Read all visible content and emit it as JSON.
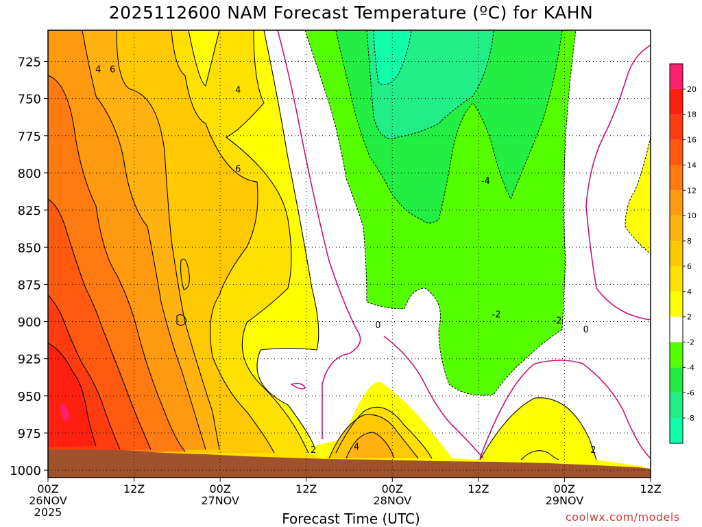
{
  "title": "2025112600 NAM Forecast Temperature (ºC) for KAHN",
  "credit": "coolwx.com/models",
  "chart_data": {
    "type": "contour",
    "title": "2025112600 NAM Forecast Temperature (ºC) for KAHN",
    "xlabel": "Forecast Time (UTC)",
    "ylabel": "",
    "y_axis": {
      "ticks": [
        725,
        750,
        775,
        800,
        825,
        850,
        875,
        900,
        925,
        950,
        975,
        1000
      ],
      "reversed": true,
      "range": [
        1005,
        704
      ]
    },
    "x_axis": {
      "range_hours": [
        0,
        84
      ],
      "ticks": [
        {
          "hour": 0,
          "label": [
            "00Z",
            "26NOV",
            "2025"
          ]
        },
        {
          "hour": 12,
          "label": [
            "12Z"
          ]
        },
        {
          "hour": 24,
          "label": [
            "00Z",
            "27NOV"
          ]
        },
        {
          "hour": 36,
          "label": [
            "12Z"
          ]
        },
        {
          "hour": 48,
          "label": [
            "00Z",
            "28NOV"
          ]
        },
        {
          "hour": 60,
          "label": [
            "12Z"
          ]
        },
        {
          "hour": 72,
          "label": [
            "00Z",
            "29NOV"
          ]
        },
        {
          "hour": 84,
          "label": [
            "12Z"
          ]
        }
      ]
    },
    "grid": true,
    "colorbar": {
      "labels": [
        "20",
        "18",
        "16",
        "14",
        "12",
        "10",
        "8",
        "6",
        "4",
        "2",
        "-2",
        "-4",
        "-6",
        "-8"
      ],
      "bands": [
        "#ff1f6e",
        "#ff2010",
        "#ff3c10",
        "#ff5a10",
        "#ff7a10",
        "#ff9a10",
        "#ffb210",
        "#ffc800",
        "#ffe000",
        "#ffff00",
        "#ffffff",
        "#55ff00",
        "#22ee44",
        "#22ee88",
        "#11ffaa"
      ]
    },
    "contour_labels": [
      {
        "text": "4",
        "hour": 7.0,
        "p": 730
      },
      {
        "text": "6",
        "hour": 9.0,
        "p": 730
      },
      {
        "text": "4",
        "hour": 26.5,
        "p": 744
      },
      {
        "text": "6",
        "hour": 26.5,
        "p": 797
      },
      {
        "text": "0",
        "hour": 46.0,
        "p": 902
      },
      {
        "text": "2",
        "hour": 37.0,
        "p": 986
      },
      {
        "text": "4",
        "hour": 43.0,
        "p": 984
      },
      {
        "text": "-4",
        "hour": 61.0,
        "p": 805
      },
      {
        "text": "-2",
        "hour": 62.5,
        "p": 895
      },
      {
        "text": "-2",
        "hour": 71.0,
        "p": 899
      },
      {
        "text": "0",
        "hour": 75.0,
        "p": 905
      },
      {
        "text": "2",
        "hour": 76.0,
        "p": 986
      }
    ]
  }
}
